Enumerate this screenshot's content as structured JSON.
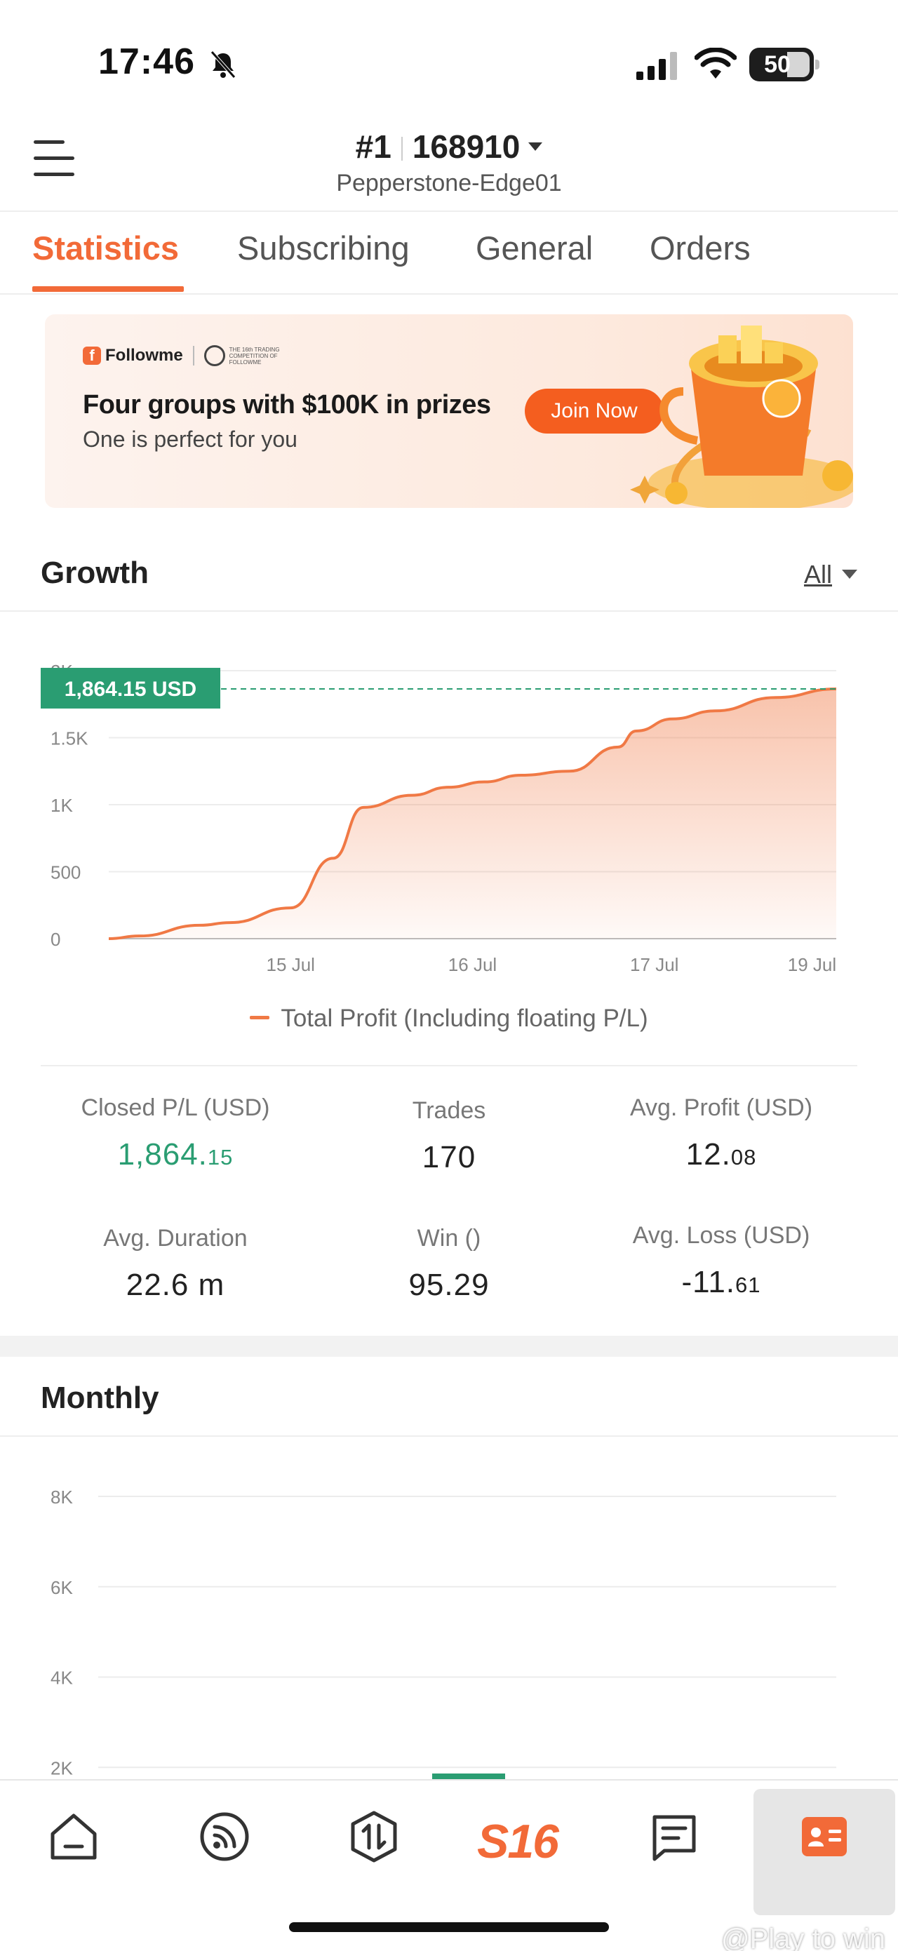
{
  "status_bar": {
    "time": "17:46",
    "battery": "50"
  },
  "header": {
    "account_rank": "#1",
    "account_id": "168910",
    "broker": "Pepperstone-Edge01"
  },
  "tabs": [
    {
      "label": "Statistics",
      "active": true
    },
    {
      "label": "Subscribing",
      "active": false
    },
    {
      "label": "General",
      "active": false
    },
    {
      "label": "Orders",
      "active": false
    }
  ],
  "banner": {
    "brand": "Followme",
    "badge_text": "THE 16th TRADING COMPETITION OF FOLLOWME",
    "title": "Four groups with $100K in prizes",
    "subtitle": "One is perfect for you",
    "button": "Join Now"
  },
  "growth": {
    "title": "Growth",
    "range": "All",
    "current_label": "1,864.15 USD",
    "legend": "Total Profit (Including floating P/L)"
  },
  "stats": {
    "closed_pl": {
      "label": "Closed P/L (USD)",
      "int": "1,864.",
      "dec": "15"
    },
    "trades": {
      "label": "Trades",
      "value": "170"
    },
    "avg_profit": {
      "label": "Avg. Profit (USD)",
      "int": "12.",
      "dec": "08"
    },
    "avg_duration": {
      "label": "Avg. Duration",
      "value": "22.6 m"
    },
    "win": {
      "label": "Win ()",
      "value": "95.29"
    },
    "avg_loss": {
      "label": "Avg. Loss (USD)",
      "int": "-11.",
      "dec": "61"
    }
  },
  "monthly": {
    "title": "Monthly"
  },
  "watermark": "@Play to win",
  "colors": {
    "accent": "#f26a38",
    "green": "#2a9d72",
    "line": "#f07945"
  },
  "chart_data": [
    {
      "type": "area",
      "title": "Growth",
      "yticks": [
        "0",
        "500",
        "1K",
        "1.5K",
        "2K"
      ],
      "ylim": [
        0,
        2000
      ],
      "xticks": [
        "15 Jul",
        "16 Jul",
        "17 Jul",
        "19 Jul"
      ],
      "series": [
        {
          "name": "Total Profit (Including floating P/L)",
          "x": [
            0,
            0.5,
            1.5,
            2.0,
            3.0,
            3.7,
            4.2,
            5.0,
            5.6,
            6.2,
            6.8,
            7.6,
            8.4,
            8.7,
            9.3,
            10.0,
            11.0,
            12.0
          ],
          "values": [
            0,
            20,
            100,
            120,
            230,
            600,
            980,
            1070,
            1130,
            1170,
            1220,
            1250,
            1430,
            1550,
            1640,
            1700,
            1800,
            1864.15
          ]
        }
      ],
      "xtick_positions": [
        3.0,
        6.0,
        9.0,
        11.6
      ],
      "grid": true
    },
    {
      "type": "bar",
      "title": "Monthly",
      "yticks": [
        "2K",
        "4K",
        "6K",
        "8K"
      ],
      "ylim": [
        0,
        8000
      ],
      "categories": [
        ""
      ],
      "values": [
        1864.15
      ],
      "color": "#2a9d72",
      "grid": true
    }
  ]
}
